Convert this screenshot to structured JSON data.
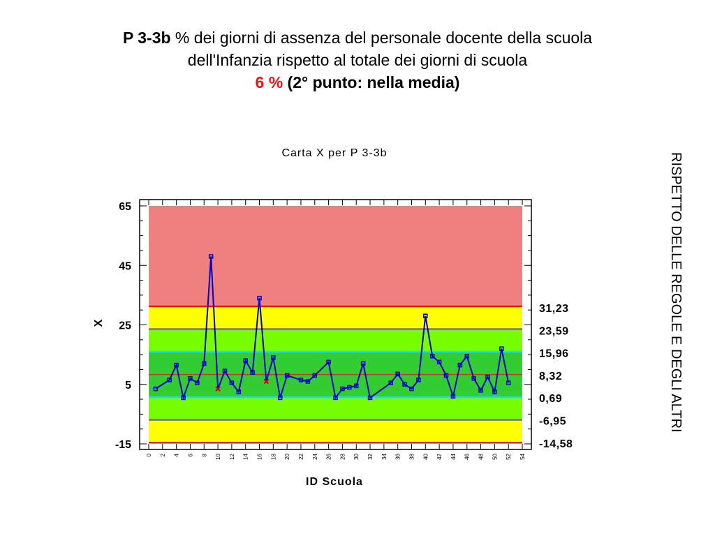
{
  "slide": {
    "code": "P 3-3b",
    "title_rest": " % dei giorni di assenza del personale docente della scuola",
    "title_line2": "dell'Infanzia rispetto al totale dei giorni di scuola",
    "value_highlight": "6 %",
    "value_note": " (2° punto: nella media)",
    "side_note": "RISPETTO DELLE REGOLE E DEGLI ALTRI"
  },
  "colors": {
    "zone_out": "#f08080",
    "zone_yellow": "#ffff00",
    "zone_lightgreen": "#77ff00",
    "zone_green": "#33cc33",
    "series_line": "#0000cc",
    "point_marker": "#0000cc",
    "outlier_marker": "#cc0000",
    "limit_red": "#ee1111",
    "limit_gray": "#777777",
    "limit_cyan": "#22dddd",
    "center_line": "#cc3333",
    "highlight_text": "#ee1111"
  },
  "chart_data": {
    "type": "line",
    "title": "Carta X per P 3-3b",
    "xlabel": "ID Scuola",
    "ylabel": "X",
    "xlim": [
      0,
      54
    ],
    "ylim": [
      -15,
      65
    ],
    "y_ticks": [
      "65",
      "45",
      "25",
      "5",
      "-15"
    ],
    "x_ticks": [
      "0",
      "2",
      "4",
      "6",
      "8",
      "10",
      "12",
      "14",
      "16",
      "18",
      "20",
      "22",
      "24",
      "26",
      "28",
      "30",
      "32",
      "34",
      "36",
      "38",
      "40",
      "42",
      "44",
      "46",
      "48",
      "50",
      "52",
      "54"
    ],
    "grid": false,
    "control_limits": [
      {
        "label": "31,23",
        "value": 31.23,
        "kind": "red"
      },
      {
        "label": "23,59",
        "value": 23.59,
        "kind": "gray"
      },
      {
        "label": "15,96",
        "value": 15.96,
        "kind": "cyan"
      },
      {
        "label": "8,32",
        "value": 8.32,
        "kind": "center"
      },
      {
        "label": "0,69",
        "value": 0.69,
        "kind": "cyan"
      },
      {
        "label": "-6,95",
        "value": -6.95,
        "kind": "gray"
      },
      {
        "label": "-14,58",
        "value": -14.58,
        "kind": "red"
      }
    ],
    "series": [
      {
        "x": [
          1,
          3,
          4,
          5,
          6,
          7,
          8,
          9,
          10,
          11,
          12,
          13,
          14,
          15,
          16,
          17,
          18,
          19,
          20,
          22,
          23,
          24,
          26,
          27,
          28,
          29,
          30,
          31,
          32,
          35,
          36,
          37,
          38,
          39,
          40,
          41,
          42,
          43,
          44,
          45,
          46,
          47,
          48,
          49,
          50,
          51,
          52
        ],
        "y": [
          3.5,
          6.5,
          11.5,
          0.5,
          7,
          5.5,
          12,
          48,
          3.5,
          9.5,
          5.5,
          2.5,
          13,
          9,
          34,
          6,
          14,
          0.5,
          8,
          6.5,
          6,
          8,
          12.5,
          0.5,
          3.5,
          4,
          4.5,
          12,
          0.5,
          5.5,
          8.5,
          5,
          3.5,
          6.5,
          28,
          14.5,
          12.5,
          8,
          1,
          11.5,
          14.5,
          7,
          3,
          7.5,
          2.5,
          17,
          5.5
        ],
        "out_of_control": [
          8,
          15
        ]
      }
    ]
  }
}
